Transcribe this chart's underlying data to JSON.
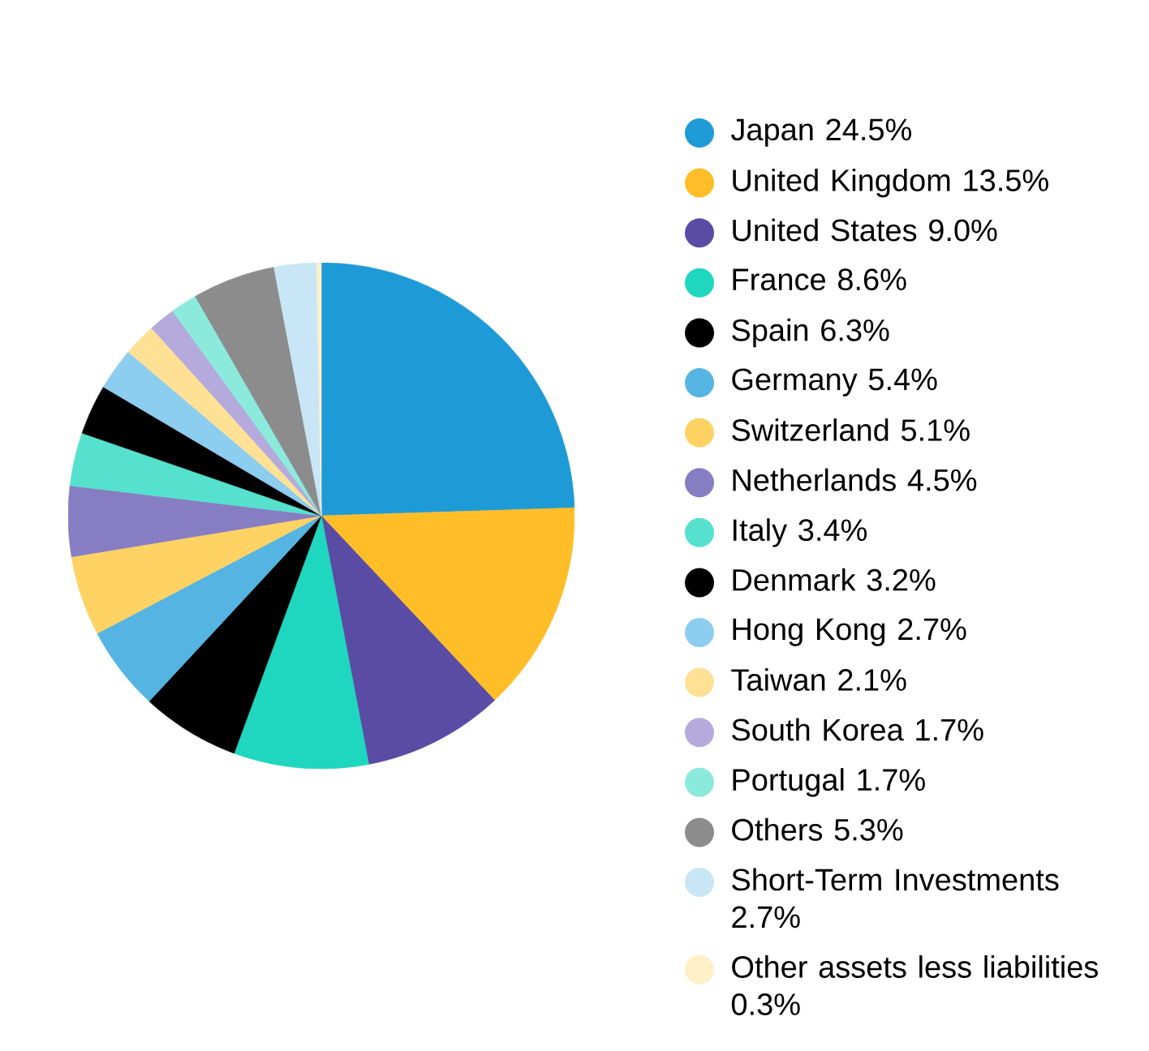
{
  "chart_data": {
    "type": "pie",
    "legend": "right",
    "categories": [
      "Japan 24.5%",
      "United Kingdom 13.5%",
      "United States 9.0%",
      "France 8.6%",
      "Spain 6.3%",
      "Germany 5.4%",
      "Switzerland 5.1%",
      "Netherlands 4.5%",
      "Italy 3.4%",
      "Denmark 3.2%",
      "Hong Kong 2.7%",
      "Taiwan 2.1%",
      "South Korea 1.7%",
      "Portugal 1.7%",
      "Others 5.3%",
      "Short-Term Investments 2.7%",
      "Other assets less liabilities 0.3%"
    ],
    "values": [
      24.5,
      13.5,
      9.0,
      8.6,
      6.3,
      5.4,
      5.1,
      4.5,
      3.4,
      3.2,
      2.7,
      2.1,
      1.7,
      1.7,
      5.3,
      2.7,
      0.3
    ],
    "colors": [
      "#1e9bd7",
      "#ffbe28",
      "#5a4ba5",
      "#1ed7be",
      "#000000",
      "#55b4e1",
      "#ffd264",
      "#877dc3",
      "#55e1cd",
      "#000000",
      "#8ccdf0",
      "#ffe196",
      "#b4aadc",
      "#8ceadc",
      "#8c8c8c",
      "#c8e6f5",
      "#fff0c8"
    ]
  }
}
